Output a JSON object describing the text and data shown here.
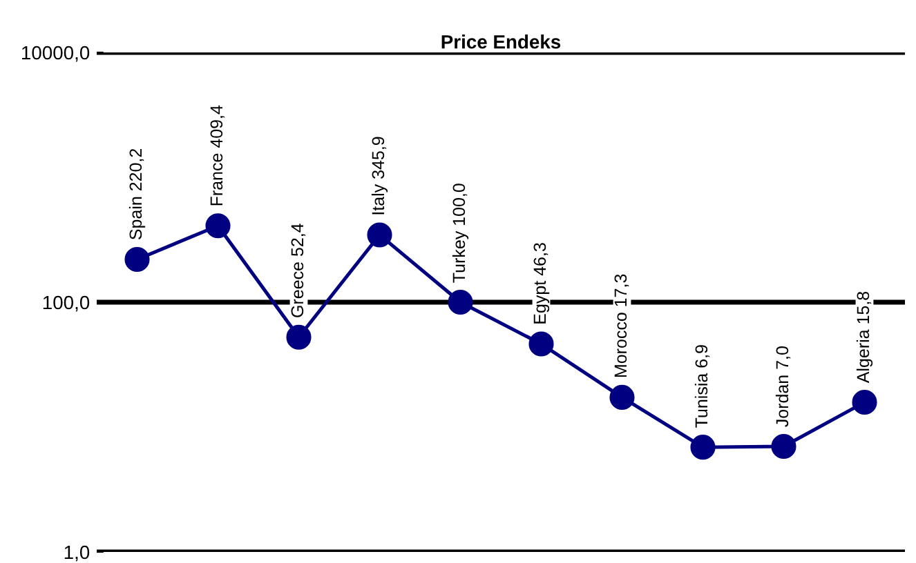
{
  "chart_data": {
    "type": "line",
    "title": "Price Endeks",
    "categories": [
      null,
      null,
      null,
      null,
      null,
      null,
      null,
      null,
      null,
      null
    ],
    "series": [
      {
        "color": "#000080",
        "values": [
          220.2,
          409.4,
          52.4,
          345.9,
          100.0,
          46.3,
          17.3,
          6.9,
          7.0,
          15.8
        ],
        "value_labels": [
          "Spain 220,2",
          "France 409,4",
          "Greece 52,4",
          "Italy 345,9",
          "Turkey 100,0",
          "Egypt 46,3",
          "Morocco 17,3",
          "Tunisia 6,9",
          "Jordan 7,0",
          "Algeria 15,8"
        ]
      }
    ],
    "log": "y",
    "ylim": [
      1,
      10000
    ],
    "yticks": [
      {
        "value": 1,
        "label": "1,0"
      },
      {
        "value": 100,
        "label": "100,0"
      },
      {
        "value": 10000,
        "label": "10000,0"
      }
    ],
    "grid": "y",
    "marker": "circle",
    "line_style": "solid",
    "tick_labels": "y"
  }
}
